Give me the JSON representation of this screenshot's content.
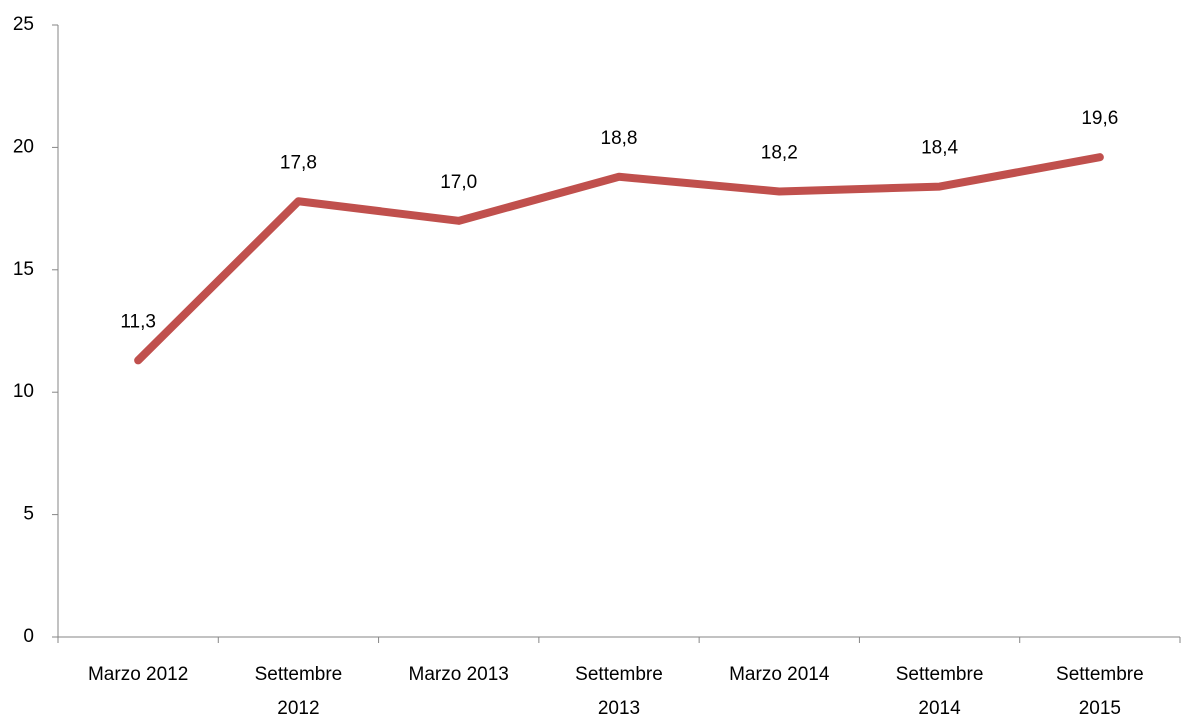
{
  "chart_data": {
    "type": "line",
    "categories": [
      "Marzo 2012",
      "Settembre 2012",
      "Marzo 2013",
      "Settembre 2013",
      "Marzo 2014",
      "Settembre 2014",
      "Settembre 2015"
    ],
    "series": [
      {
        "color": "#c0504d",
        "values": [
          11.3,
          17.8,
          17.0,
          18.8,
          18.2,
          18.4,
          19.6
        ],
        "value_labels": [
          "11,3",
          "17,8",
          "17,0",
          "18,8",
          "18,2",
          "18,4",
          "19,6"
        ]
      }
    ],
    "ylim": [
      0,
      25
    ],
    "yticks": [
      0,
      5,
      10,
      15,
      20,
      25
    ],
    "grid": false
  }
}
